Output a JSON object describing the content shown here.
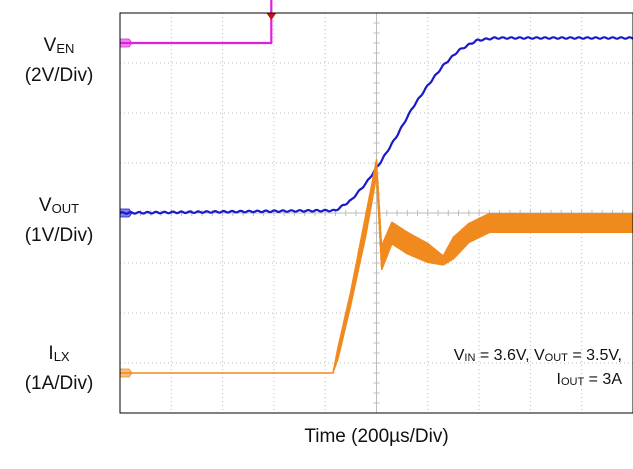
{
  "chart_data": {
    "type": "line",
    "title": "",
    "xlabel": "Time (200µs/Div)",
    "x_unit": "µs",
    "x_divisions": 10,
    "y_divisions": 8,
    "xlim": [
      0,
      2000
    ],
    "grid": true,
    "series": [
      {
        "key": "VEN",
        "color": "#e020e0",
        "scale_label": "(2V/Div)",
        "volts_per_div": 2,
        "ground_div": 7.4,
        "x": [
          0,
          590,
          590,
          2000
        ],
        "y": [
          0,
          0,
          3.6,
          3.6
        ]
      },
      {
        "key": "VOUT",
        "color": "#1a1acc",
        "scale_label": "(1V/Div)",
        "volts_per_div": 1,
        "ground_div": 4.0,
        "x": [
          0,
          840,
          900,
          960,
          1020,
          1080,
          1140,
          1200,
          1260,
          1320,
          1390,
          1460,
          2000
        ],
        "y": [
          0,
          0.05,
          0.25,
          0.6,
          1.05,
          1.55,
          2.1,
          2.55,
          2.95,
          3.25,
          3.45,
          3.5,
          3.5
        ]
      },
      {
        "key": "ILX",
        "color": "#f08a1e",
        "scale_label": "(1A/Div)",
        "amps_per_div": 1,
        "ground_div": 0.8,
        "x": [
          0,
          830,
          850,
          900,
          960,
          1000,
          1020,
          1060,
          1120,
          1200,
          1260,
          1300,
          1360,
          1440,
          2000
        ],
        "y": [
          0,
          0,
          0.4,
          1.5,
          3.0,
          4.1,
          2.3,
          2.8,
          2.6,
          2.4,
          2.25,
          2.5,
          2.8,
          3.0,
          3.0
        ],
        "ripple_a": [
          0,
          0,
          0.25,
          0.3,
          0.45,
          0.35,
          0.5,
          0.45,
          0.45,
          0.4,
          0.2,
          0.45,
          0.4,
          0.4,
          0.4
        ]
      }
    ]
  },
  "labels": {
    "ven_main": "V",
    "ven_sub": "EN",
    "ven_scale": "(2V/Div)",
    "vout_main": "V",
    "vout_sub": "OUT",
    "vout_scale": "(1V/Div)",
    "ilx_main": "I",
    "ilx_sub": "LX",
    "ilx_scale": "(1A/Div)"
  },
  "conditions": {
    "vin_main": "V",
    "vin_sub": "IN",
    "vin_value": " = 3.6V, ",
    "vout_main": "V",
    "vout_sub": "OUT",
    "vout_value": " = 3.5V,",
    "iout_main": "I",
    "iout_sub": "OUT",
    "iout_value": " = 3A"
  },
  "colors": {
    "grid": "#bdbdbd",
    "frame": "#000000",
    "trigger": "#cc1111"
  }
}
